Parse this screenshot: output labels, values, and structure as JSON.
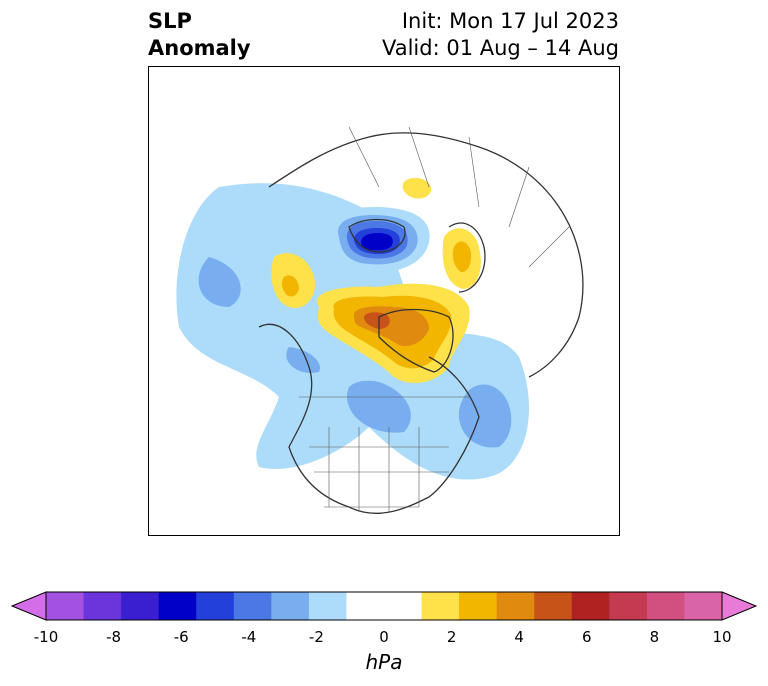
{
  "title": {
    "left_line1": "SLP",
    "left_line2": "Anomaly",
    "right_line1": "Init: Mon 17 Jul 2023",
    "right_line2": "Valid: 01 Aug – 14 Aug"
  },
  "colorbar": {
    "units": "hPa",
    "tick_labels": [
      "-10",
      "-8",
      "-6",
      "-4",
      "-2",
      "0",
      "2",
      "4",
      "6",
      "8",
      "10"
    ],
    "colors": [
      "#d36ee8",
      "#a251e0",
      "#6c35db",
      "#3a1fd0",
      "#0000c8",
      "#2440da",
      "#4c78e6",
      "#78aef0",
      "#acdcfa",
      "#ffffff",
      "#ffffff",
      "#ffe14a",
      "#f2b600",
      "#e08a10",
      "#c85318",
      "#b02222",
      "#c43a50",
      "#d25080",
      "#d965a8",
      "#e87ad8"
    ]
  },
  "map": {
    "projection": "polar stereographic (North America / Arctic)",
    "features": [
      {
        "name": "arctic-low",
        "sign": "negative",
        "peak_hpa": -6
      },
      {
        "name": "greenland-high",
        "sign": "positive",
        "peak_hpa": 5
      },
      {
        "name": "scandinavia-high",
        "sign": "positive",
        "peak_hpa": 2
      },
      {
        "name": "alaska-high",
        "sign": "positive",
        "peak_hpa": 2
      },
      {
        "name": "north-atlantic-low",
        "sign": "negative",
        "peak_hpa": -3
      },
      {
        "name": "central-canada-low",
        "sign": "negative",
        "peak_hpa": -4
      },
      {
        "name": "northeast-asia-low",
        "sign": "negative",
        "peak_hpa": -3
      }
    ]
  }
}
